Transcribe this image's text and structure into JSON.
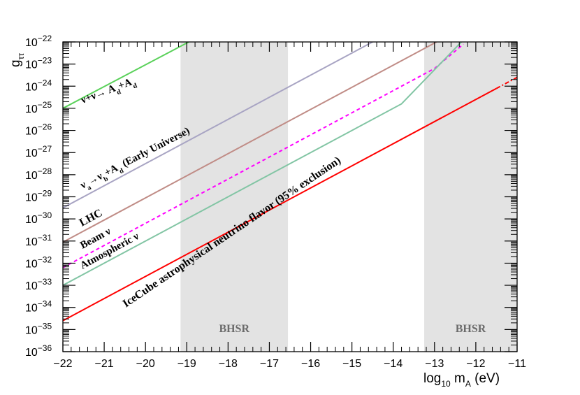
{
  "chart_data": {
    "type": "line",
    "title": "",
    "xlabel": "log₁₀ mₐ (eV)",
    "xlabel_parts": {
      "main": "log",
      "sub": "10",
      "mid": " m",
      "sub2": "A",
      "unit": " (eV)"
    },
    "ylabel_parts": {
      "main": "g",
      "sub": "ττ"
    },
    "xlim": [
      -22,
      -11
    ],
    "ylim_log10": [
      -36,
      -22
    ],
    "x_ticks": [
      -22,
      -21,
      -20,
      -19,
      -18,
      -17,
      -16,
      -15,
      -14,
      -13,
      -12,
      -11
    ],
    "x_tick_labels": [
      "−22",
      "−21",
      "−20",
      "−19",
      "−18",
      "−17",
      "−16",
      "−15",
      "−14",
      "−13",
      "−12",
      "−11"
    ],
    "y_ticks_exp": [
      -36,
      -35,
      -34,
      -33,
      -32,
      -31,
      -30,
      -29,
      -28,
      -27,
      -26,
      -25,
      -24,
      -23,
      -22
    ],
    "y_tick_base": "10",
    "shaded_regions": [
      {
        "label": "BHSR",
        "x_range": [
          -19.15,
          -16.55
        ],
        "color": "#e3e3e3"
      },
      {
        "label": "BHSR",
        "x_range": [
          -13.25,
          -11
        ],
        "color": "#e3e3e3"
      }
    ],
    "series": [
      {
        "name": "Early Universe",
        "color": "#5ad15a",
        "style": "solid",
        "points": [
          [
            -22,
            -25.0
          ],
          [
            -18.95,
            -22.0
          ]
        ]
      },
      {
        "name": "Early Universe",
        "color": "#a8a4c3",
        "style": "solid",
        "points": [
          [
            -22,
            -29.5
          ],
          [
            -14.5,
            -22.0
          ]
        ]
      },
      {
        "name": "LHC",
        "color": "#c08c86",
        "style": "solid",
        "points": [
          [
            -22,
            -31.05
          ],
          [
            -12.95,
            -22.0
          ]
        ]
      },
      {
        "name": "Beam",
        "color": "#ff00ff",
        "style": "dashed",
        "points": [
          [
            -22,
            -32.2
          ],
          [
            -13.0,
            -23.2
          ],
          [
            -12.3,
            -22.1
          ]
        ]
      },
      {
        "name": "Atmospheric",
        "color": "#82c5a4",
        "style": "solid",
        "points": [
          [
            -22,
            -33.0
          ],
          [
            -13.8,
            -24.8
          ],
          [
            -12.35,
            -22.0
          ]
        ]
      },
      {
        "name": "IceCube",
        "color": "#ff0000",
        "style": "solid",
        "points": [
          [
            -22,
            -34.6
          ],
          [
            -11.5,
            -24.1
          ]
        ]
      },
      {
        "name": "IceCube",
        "color": "#ff0000",
        "style": "dashdot",
        "points": [
          [
            -11.5,
            -24.1
          ],
          [
            -11,
            -23.6
          ]
        ]
      }
    ],
    "annotations": [
      {
        "text_parts": [
          "ν+ν→ A",
          "d",
          "+A",
          "d"
        ],
        "color": "#5ad15a"
      },
      {
        "text_parts": [
          "ν",
          "a",
          "→ν",
          "b",
          "+A",
          "d",
          " (Early Universe)"
        ],
        "color": "#a8a4c3"
      },
      {
        "text": "LHC",
        "color": "#c08c86"
      },
      {
        "text": "Beam  ν",
        "color": "#ff00ff"
      },
      {
        "text": "Atmospheric  ν",
        "color": "#82c5a4"
      },
      {
        "text": "IceCube astrophysical neutrino flavor (95% exclusion)",
        "color": "#ff0000"
      }
    ],
    "grid": false,
    "legend": "none",
    "y_scale": "log"
  }
}
